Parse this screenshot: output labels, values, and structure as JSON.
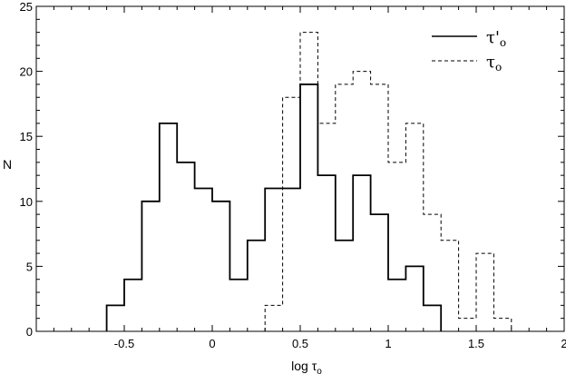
{
  "chart_data": {
    "type": "histogram-step",
    "xlabel": "log τ",
    "xlabel_sub": "o",
    "ylabel": "N",
    "xlim": [
      -1.0,
      2.0
    ],
    "ylim": [
      0,
      25
    ],
    "grid": false,
    "legend_placement": "top-right",
    "x_ticks": [
      -0.5,
      0,
      0.5,
      1,
      1.5,
      2
    ],
    "x_tick_labels": [
      "-0.5",
      "0",
      "0.5",
      "1",
      "1.5",
      "2"
    ],
    "y_ticks": [
      0,
      5,
      10,
      15,
      20,
      25
    ],
    "y_tick_labels": [
      "0",
      "5",
      "10",
      "15",
      "20",
      "25"
    ],
    "bin_width": 0.1,
    "series": [
      {
        "name": "τ'o",
        "legend_main": "τ'",
        "legend_sub": "o",
        "style": "solid",
        "bin_left_edges": [
          -0.6,
          -0.5,
          -0.4,
          -0.3,
          -0.2,
          -0.1,
          0.0,
          0.1,
          0.2,
          0.3,
          0.4,
          0.5,
          0.6,
          0.7,
          0.8,
          0.9,
          1.0,
          1.1,
          1.2
        ],
        "counts": [
          2,
          4,
          10,
          16,
          13,
          11,
          10,
          4,
          7,
          11,
          11,
          19,
          12,
          7,
          12,
          9,
          4,
          5,
          2
        ]
      },
      {
        "name": "τo",
        "legend_main": "τ",
        "legend_sub": "o",
        "style": "dashed",
        "bin_left_edges": [
          0.3,
          0.4,
          0.5,
          0.6,
          0.7,
          0.8,
          0.9,
          1.0,
          1.1,
          1.2,
          1.3,
          1.4,
          1.5,
          1.6
        ],
        "counts": [
          2,
          18,
          23,
          16,
          19,
          20,
          19,
          13,
          16,
          9,
          7,
          1,
          6,
          1
        ]
      }
    ]
  }
}
